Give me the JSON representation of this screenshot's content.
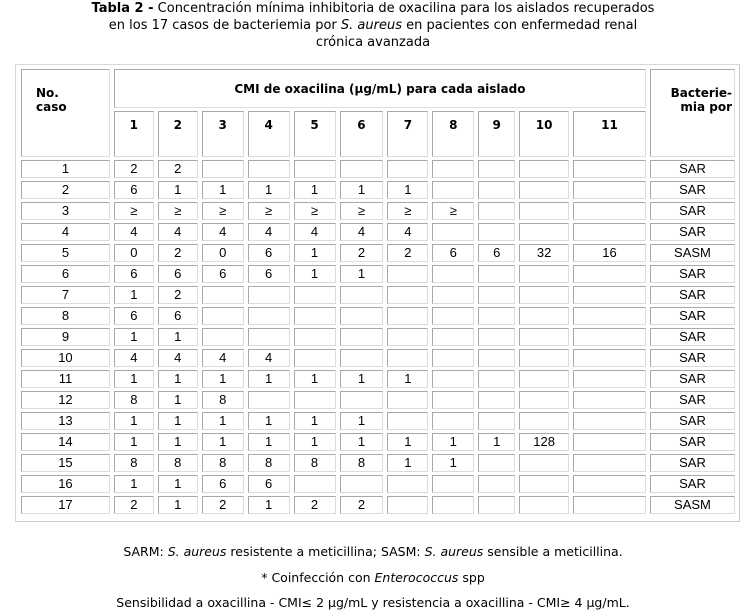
{
  "title": {
    "label": "Tabla 2 -",
    "text_1": " Concentración mínima inhibitoria de oxacilina para los aislados recuperados",
    "text_2": "en los 17 casos de bacteriemia por ",
    "text_2_italic": "S. aureus",
    "text_3": " en pacientes con enfermedad renal",
    "text_4": "crónica avanzada"
  },
  "table": {
    "header_case_1": "No.",
    "header_case_2": "caso",
    "header_cmi": "CMI de oxacilina (μg/mL) para cada aislado",
    "header_bact_1": "Bacterie-",
    "header_bact_2": "mia por",
    "isolates": [
      "1",
      "2",
      "3",
      "4",
      "5",
      "6",
      "7",
      "8",
      "9",
      "10",
      "11"
    ],
    "rows": [
      {
        "case": "1",
        "mic": [
          "2",
          "2",
          "",
          "",
          "",
          "",
          "",
          "",
          "",
          "",
          ""
        ],
        "bact": "SAR"
      },
      {
        "case": "2",
        "mic": [
          "6",
          "1",
          "1",
          "1",
          "1",
          "1",
          "1",
          "",
          "",
          "",
          ""
        ],
        "bact": "SAR"
      },
      {
        "case": "3",
        "mic": [
          "≥",
          "≥",
          "≥",
          "≥",
          "≥",
          "≥",
          "≥",
          "≥",
          "",
          "",
          ""
        ],
        "bact": "SAR"
      },
      {
        "case": "4",
        "mic": [
          "4",
          "4",
          "4",
          "4",
          "4",
          "4",
          "4",
          "",
          "",
          "",
          ""
        ],
        "bact": "SAR"
      },
      {
        "case": "5",
        "mic": [
          "0",
          "2",
          "0",
          "6",
          "1",
          "2",
          "2",
          "6",
          "6",
          "32",
          "16"
        ],
        "bact": "SASM"
      },
      {
        "case": "6",
        "mic": [
          "6",
          "6",
          "6",
          "6",
          "1",
          "1",
          "",
          "",
          "",
          "",
          ""
        ],
        "bact": "SAR"
      },
      {
        "case": "7",
        "mic": [
          "1",
          "2",
          "",
          "",
          "",
          "",
          "",
          "",
          "",
          "",
          ""
        ],
        "bact": "SAR"
      },
      {
        "case": "8",
        "mic": [
          "6",
          "6",
          "",
          "",
          "",
          "",
          "",
          "",
          "",
          "",
          ""
        ],
        "bact": "SAR"
      },
      {
        "case": "9",
        "mic": [
          "1",
          "1",
          "",
          "",
          "",
          "",
          "",
          "",
          "",
          "",
          ""
        ],
        "bact": "SAR"
      },
      {
        "case": "10",
        "mic": [
          "4",
          "4",
          "4",
          "4",
          "",
          "",
          "",
          "",
          "",
          "",
          ""
        ],
        "bact": "SAR"
      },
      {
        "case": "11",
        "mic": [
          "1",
          "1",
          "1",
          "1",
          "1",
          "1",
          "1",
          "",
          "",
          "",
          ""
        ],
        "bact": "SAR"
      },
      {
        "case": "12",
        "mic": [
          "8",
          "1",
          "8",
          "",
          "",
          "",
          "",
          "",
          "",
          "",
          ""
        ],
        "bact": "SAR"
      },
      {
        "case": "13",
        "mic": [
          "1",
          "1",
          "1",
          "1",
          "1",
          "1",
          "",
          "",
          "",
          "",
          ""
        ],
        "bact": "SAR"
      },
      {
        "case": "14",
        "mic": [
          "1",
          "1",
          "1",
          "1",
          "1",
          "1",
          "1",
          "1",
          "1",
          "128",
          ""
        ],
        "bact": "SAR"
      },
      {
        "case": "15",
        "mic": [
          "8",
          "8",
          "8",
          "8",
          "8",
          "8",
          "1",
          "1",
          "",
          "",
          ""
        ],
        "bact": "SAR"
      },
      {
        "case": "16",
        "mic": [
          "1",
          "1",
          "6",
          "6",
          "",
          "",
          "",
          "",
          "",
          "",
          ""
        ],
        "bact": "SAR"
      },
      {
        "case": "17",
        "mic": [
          "2",
          "1",
          "2",
          "1",
          "2",
          "2",
          "",
          "",
          "",
          "",
          ""
        ],
        "bact": "SASM"
      }
    ]
  },
  "footnotes": {
    "line1_a": "SARM: ",
    "line1_b": "S. aureus",
    "line1_c": " resistente a meticillina; SASM: ",
    "line1_d": "S. aureus",
    "line1_e": " sensible a meticillina.",
    "line2_a": "* Coinfección con ",
    "line2_b": "Enterococcus",
    "line2_c": " spp",
    "line3": "Sensibilidad a oxacillina - CMI≤ 2 μg/mL y resistencia a oxacillina - CMI≥ 4 μg/mL."
  }
}
